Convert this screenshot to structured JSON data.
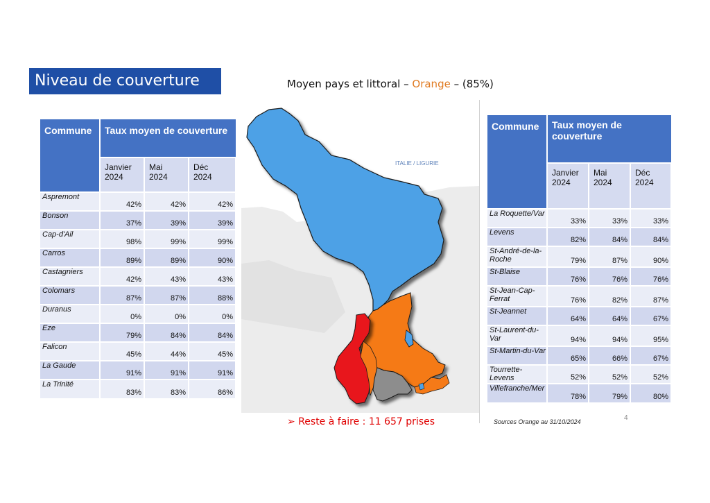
{
  "title": "Niveau de couverture",
  "subtitle": {
    "prefix": "Moyen pays et littoral – ",
    "operator": "Orange",
    "suffix": " – (85%)"
  },
  "colors": {
    "title_bg": "#1f4fa6",
    "header_blue": "#4472c4",
    "accent_orange": "#e07b22",
    "alert_red": "#e00000"
  },
  "headers": {
    "commune": "Commune",
    "taux": "Taux moyen de couverture",
    "months": [
      {
        "label1": "Janvier",
        "label2": "2024"
      },
      {
        "label1": "Mai",
        "label2": "2024"
      },
      {
        "label1": "Déc",
        "label2": "2024"
      }
    ]
  },
  "left_rows": [
    {
      "name": "Aspremont",
      "v1": "42%",
      "v2": "42%",
      "v3": "42%"
    },
    {
      "name": "Bonson",
      "v1": "37%",
      "v2": "39%",
      "v3": "39%"
    },
    {
      "name": "Cap-d'Ail",
      "v1": "98%",
      "v2": "99%",
      "v3": "99%"
    },
    {
      "name": "Carros",
      "v1": "89%",
      "v2": "89%",
      "v3": "90%"
    },
    {
      "name": "Castagniers",
      "v1": "42%",
      "v2": "43%",
      "v3": "43%"
    },
    {
      "name": "Colomars",
      "v1": "87%",
      "v2": "87%",
      "v3": "88%"
    },
    {
      "name": "Duranus",
      "v1": "0%",
      "v2": "0%",
      "v3": "0%"
    },
    {
      "name": "Eze",
      "v1": "79%",
      "v2": "84%",
      "v3": "84%"
    },
    {
      "name": "Falicon",
      "v1": "45%",
      "v2": "44%",
      "v3": "45%"
    },
    {
      "name": "La Gaude",
      "v1": "91%",
      "v2": "91%",
      "v3": "91%"
    },
    {
      "name": "La Trinité",
      "v1": "83%",
      "v2": "83%",
      "v3": "86%"
    }
  ],
  "right_rows": [
    {
      "name": "La Roquette/Var",
      "v1": "33%",
      "v2": "33%",
      "v3": "33%"
    },
    {
      "name": "Levens",
      "v1": "82%",
      "v2": "84%",
      "v3": "84%"
    },
    {
      "name": "St-André-de-la-Roche",
      "v1": "79%",
      "v2": "87%",
      "v3": "90%"
    },
    {
      "name": "St-Blaise",
      "v1": "76%",
      "v2": "76%",
      "v3": "76%"
    },
    {
      "name": "St-Jean-Cap-Ferrat",
      "v1": "76%",
      "v2": "82%",
      "v3": "87%"
    },
    {
      "name": "St-Jeannet",
      "v1": "64%",
      "v2": "64%",
      "v3": "67%"
    },
    {
      "name": "St-Laurent-du-Var",
      "v1": "94%",
      "v2": "94%",
      "v3": "95%"
    },
    {
      "name": "St-Martin-du-Var",
      "v1": "65%",
      "v2": "66%",
      "v3": "67%"
    },
    {
      "name": "Tourrette-Levens",
      "v1": "52%",
      "v2": "52%",
      "v3": "52%"
    },
    {
      "name": "Villefranche/Mer",
      "v1": "78%",
      "v2": "79%",
      "v3": "80%"
    }
  ],
  "map": {
    "label": "ITALIE / LIGURIE"
  },
  "reste": {
    "marker": "➢",
    "text": "Reste à faire : 11 657 prises"
  },
  "sources": "Sources Orange au 31/10/2024",
  "page_number": "4"
}
